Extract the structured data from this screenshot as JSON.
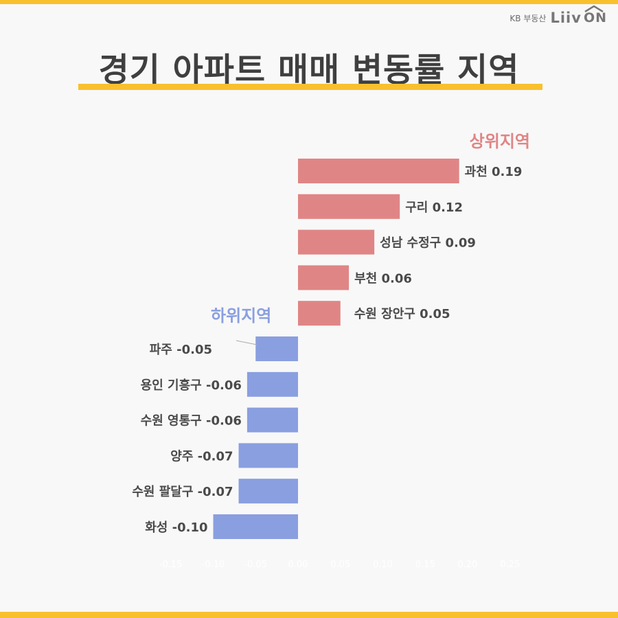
{
  "colors": {
    "accent": "#f9c02e",
    "top_series": "#e08585",
    "bottom_series": "#8a9fe0",
    "title": "#3f3f3f",
    "value_label": "#4a4a4a",
    "tick": "#ffffff"
  },
  "brand": {
    "kb": "KB 부동산",
    "logo": "Liiv",
    "logo_suffix": "ON",
    "icon": "house-roof-icon"
  },
  "title": "경기 아파트 매매 변동률 지역",
  "groups": {
    "top_label": "상위지역",
    "bottom_label": "하위지역"
  },
  "chart_data": {
    "type": "bar",
    "orientation": "horizontal",
    "categories": [
      "과천",
      "구리",
      "성남 수정구",
      "부천",
      "수원 장안구",
      "파주",
      "용인 기흥구",
      "수원 영통구",
      "양주",
      "수원 팔달구",
      "화성"
    ],
    "values": [
      0.19,
      0.12,
      0.09,
      0.06,
      0.05,
      -0.05,
      -0.06,
      -0.06,
      -0.07,
      -0.07,
      -0.1
    ],
    "labels": [
      "과천 0.19",
      "구리 0.12",
      "성남 수정구 0.09",
      "부천 0.06",
      "수원 장안구 0.05",
      "파주 -0.05",
      "용인 기흥구 -0.06",
      "수원 영통구 -0.06",
      "양주 -0.07",
      "수원 팔달구 -0.07",
      "화성 -0.10"
    ],
    "groups": [
      "top",
      "top",
      "top",
      "top",
      "top",
      "bottom",
      "bottom",
      "bottom",
      "bottom",
      "bottom",
      "bottom"
    ],
    "xlim": [
      -0.15,
      0.25
    ],
    "xticks": [
      "-0.15",
      "-0.10",
      "-0.05",
      "0.00",
      "0.05",
      "0.10",
      "0.15",
      "0.20",
      "0.25"
    ],
    "grid": false,
    "legend": "none"
  }
}
